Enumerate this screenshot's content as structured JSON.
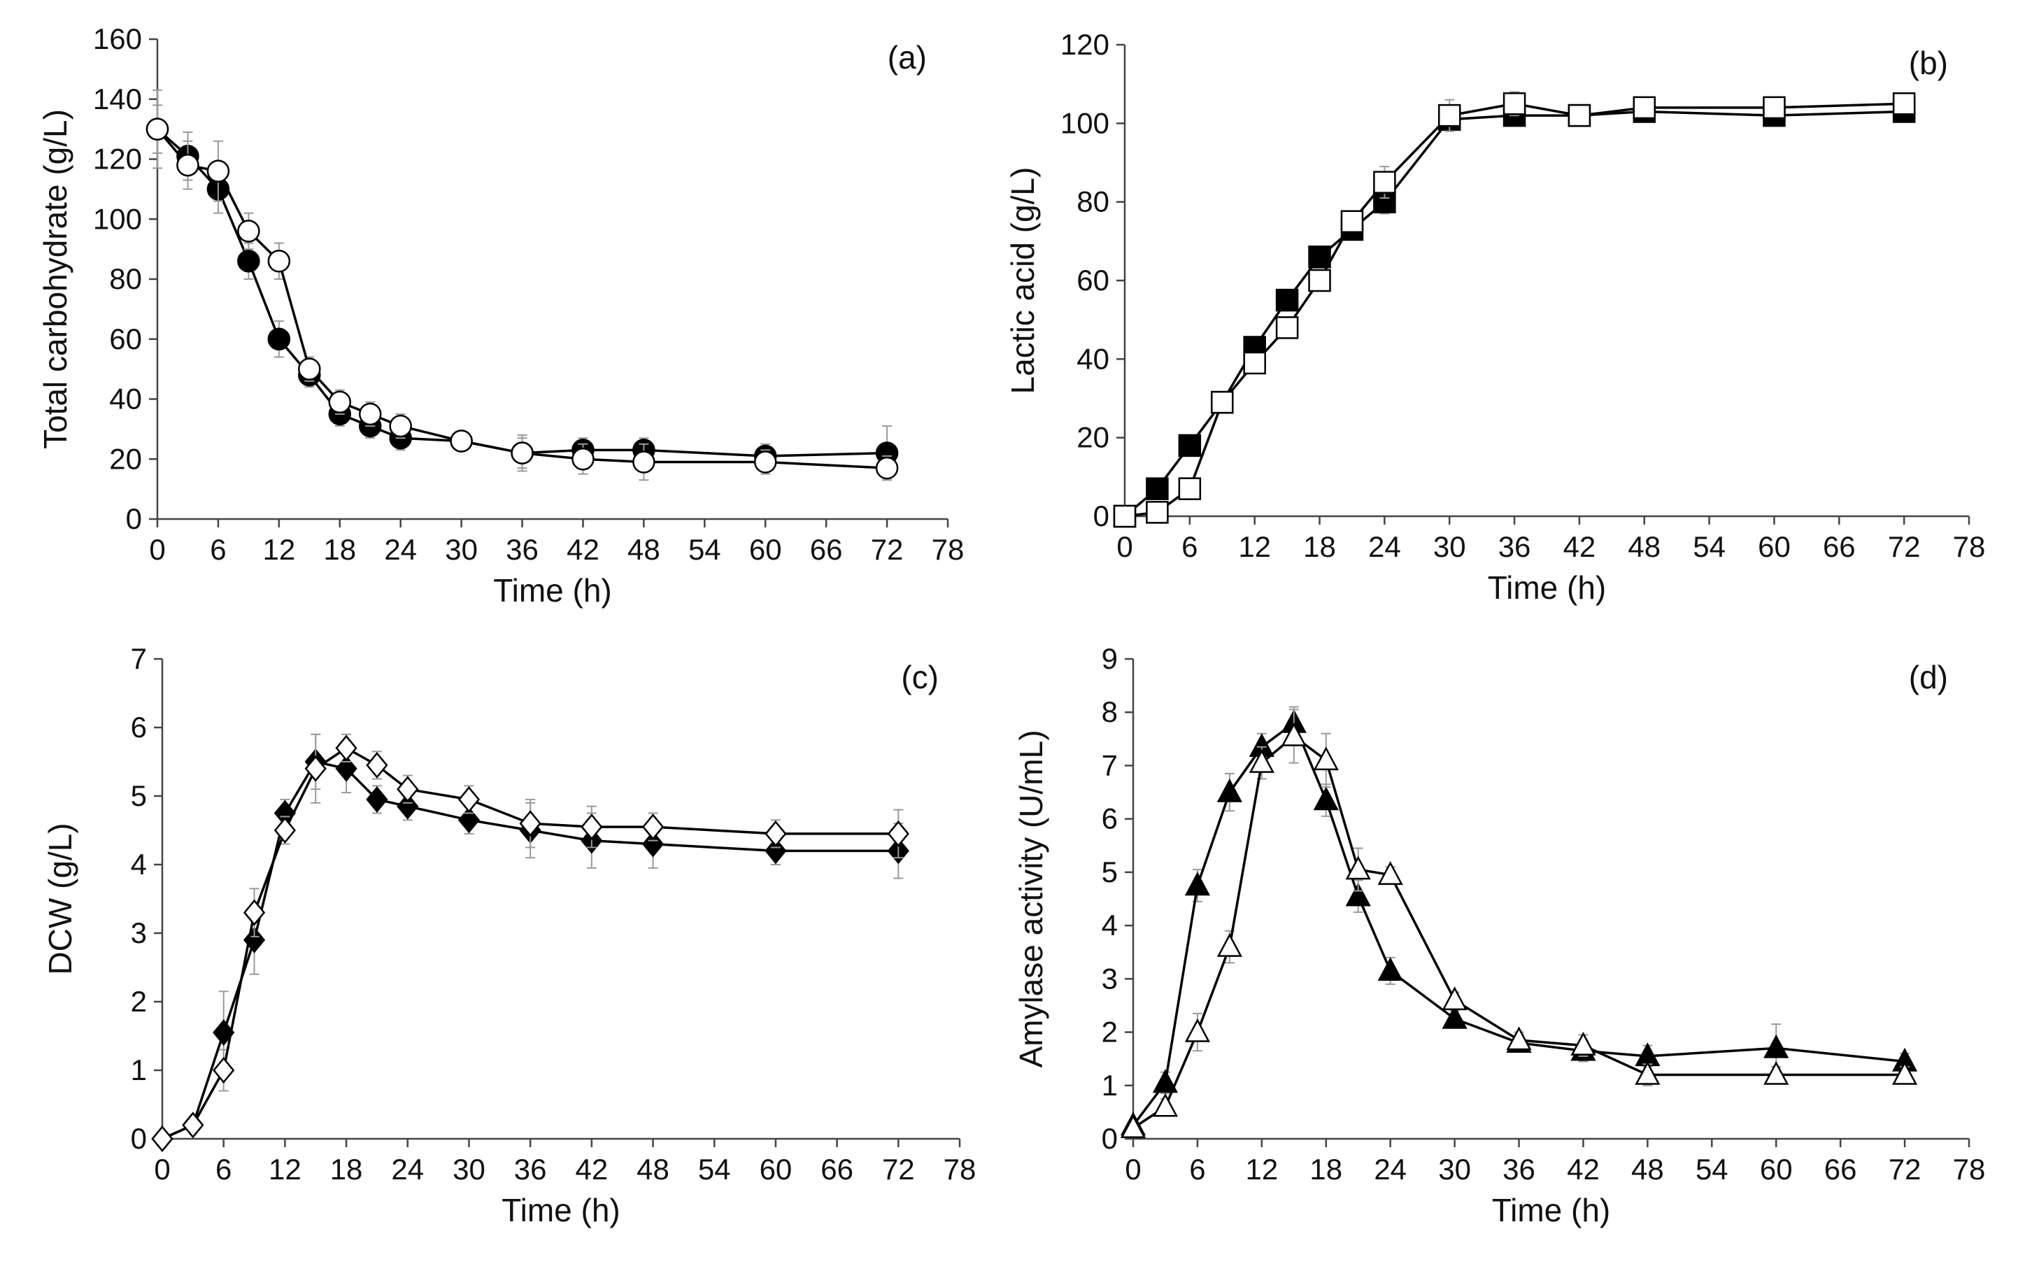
{
  "chart_data": [
    {
      "id": "a",
      "type": "line",
      "panel_label": "(a)",
      "xlabel": "Time (h)",
      "ylabel": "Total carbohydrate (g/L)",
      "xlim": [
        0,
        78
      ],
      "ylim": [
        0,
        160
      ],
      "xticks": [
        0,
        6,
        12,
        18,
        24,
        30,
        36,
        42,
        48,
        54,
        60,
        66,
        72,
        78
      ],
      "yticks": [
        0,
        20,
        40,
        60,
        80,
        100,
        120,
        140,
        160
      ],
      "grid": false,
      "series": [
        {
          "name": "filled circle",
          "marker": "circle",
          "fill": "#000000",
          "x": [
            0,
            3,
            6,
            9,
            12,
            15,
            18,
            21,
            24,
            30,
            36,
            42,
            48,
            60,
            72
          ],
          "values": [
            130,
            121,
            110,
            86,
            60,
            48,
            35,
            31,
            27,
            26,
            22,
            23,
            23,
            21,
            22
          ],
          "errors": [
            8,
            8,
            8,
            6,
            6,
            4,
            4,
            4,
            4,
            3,
            5,
            4,
            4,
            4,
            9
          ]
        },
        {
          "name": "open circle",
          "marker": "circle",
          "fill": "#ffffff",
          "x": [
            0,
            3,
            6,
            9,
            12,
            15,
            18,
            21,
            24,
            30,
            36,
            42,
            48,
            60,
            72
          ],
          "values": [
            130,
            118,
            116,
            96,
            86,
            50,
            39,
            35,
            31,
            26,
            22,
            20,
            19,
            19,
            17
          ],
          "errors": [
            13,
            8,
            10,
            6,
            6,
            4,
            4,
            4,
            4,
            3,
            6,
            5,
            6,
            4,
            4
          ]
        }
      ]
    },
    {
      "id": "b",
      "type": "line",
      "panel_label": "(b)",
      "xlabel": "Time (h)",
      "ylabel": "Lactic acid (g/L)",
      "xlim": [
        0,
        78
      ],
      "ylim": [
        0,
        120
      ],
      "xticks": [
        0,
        6,
        12,
        18,
        24,
        30,
        36,
        42,
        48,
        54,
        60,
        66,
        72,
        78
      ],
      "yticks": [
        0,
        20,
        40,
        60,
        80,
        100,
        120
      ],
      "grid": false,
      "series": [
        {
          "name": "filled square",
          "marker": "square",
          "fill": "#000000",
          "x": [
            0,
            3,
            6,
            9,
            12,
            15,
            18,
            21,
            24,
            30,
            36,
            42,
            48,
            60,
            72
          ],
          "values": [
            0,
            7,
            18,
            29,
            43,
            55,
            66,
            73,
            80,
            101,
            102,
            102,
            103,
            102,
            103
          ],
          "errors": [
            0,
            1,
            2,
            2,
            2,
            2,
            2,
            2,
            3,
            3,
            2,
            2,
            2,
            2,
            2
          ]
        },
        {
          "name": "open square",
          "marker": "square",
          "fill": "#ffffff",
          "x": [
            0,
            3,
            6,
            9,
            12,
            15,
            18,
            21,
            24,
            30,
            36,
            42,
            48,
            60,
            72
          ],
          "values": [
            0,
            1,
            7,
            29,
            39,
            48,
            60,
            75,
            85,
            102,
            105,
            102,
            104,
            104,
            105
          ],
          "errors": [
            0,
            1,
            2,
            2,
            2,
            2,
            2,
            2,
            4,
            4,
            3,
            2,
            2,
            2,
            2
          ]
        }
      ]
    },
    {
      "id": "c",
      "type": "line",
      "panel_label": "(c)",
      "xlabel": "Time (h)",
      "ylabel": "DCW (g/L)",
      "xlim": [
        0,
        78
      ],
      "ylim": [
        0,
        7
      ],
      "xticks": [
        0,
        6,
        12,
        18,
        24,
        30,
        36,
        42,
        48,
        54,
        60,
        66,
        72,
        78
      ],
      "yticks": [
        0,
        1,
        2,
        3,
        4,
        5,
        6,
        7
      ],
      "grid": false,
      "series": [
        {
          "name": "filled diamond",
          "marker": "diamond",
          "fill": "#000000",
          "x": [
            0,
            3,
            6,
            9,
            12,
            15,
            18,
            21,
            24,
            30,
            36,
            42,
            48,
            60,
            72
          ],
          "values": [
            0,
            0.2,
            1.55,
            2.9,
            4.75,
            5.5,
            5.4,
            4.95,
            4.85,
            4.65,
            4.5,
            4.35,
            4.3,
            4.2,
            4.2
          ],
          "errors": [
            0,
            0.05,
            0.6,
            0.5,
            0.2,
            0.4,
            0.35,
            0.2,
            0.2,
            0.2,
            0.4,
            0.4,
            0.35,
            0.2,
            0.4
          ]
        },
        {
          "name": "open diamond",
          "marker": "diamond",
          "fill": "#ffffff",
          "x": [
            0,
            3,
            6,
            9,
            12,
            15,
            18,
            21,
            24,
            30,
            36,
            42,
            48,
            60,
            72
          ],
          "values": [
            0,
            0.2,
            1.0,
            3.3,
            4.5,
            5.4,
            5.7,
            5.45,
            5.1,
            4.95,
            4.6,
            4.55,
            4.55,
            4.45,
            4.45
          ],
          "errors": [
            0,
            0.05,
            0.3,
            0.35,
            0.2,
            0.5,
            0.2,
            0.2,
            0.2,
            0.2,
            0.35,
            0.3,
            0.2,
            0.2,
            0.35
          ]
        }
      ]
    },
    {
      "id": "d",
      "type": "line",
      "panel_label": "(d)",
      "xlabel": "Time (h)",
      "ylabel": "Amylase activity (U/mL)",
      "xlim": [
        0,
        78
      ],
      "ylim": [
        0,
        9
      ],
      "xticks": [
        0,
        6,
        12,
        18,
        24,
        30,
        36,
        42,
        48,
        54,
        60,
        66,
        72,
        78
      ],
      "yticks": [
        0,
        1,
        2,
        3,
        4,
        5,
        6,
        7,
        8,
        9
      ],
      "grid": false,
      "series": [
        {
          "name": "filled triangle",
          "marker": "triangle",
          "fill": "#000000",
          "x": [
            0,
            3,
            6,
            9,
            12,
            15,
            18,
            21,
            24,
            30,
            36,
            42,
            48,
            60,
            72
          ],
          "values": [
            0.25,
            1.05,
            4.75,
            6.5,
            7.35,
            7.8,
            6.35,
            4.55,
            3.15,
            2.25,
            1.8,
            1.65,
            1.55,
            1.7,
            1.45
          ],
          "errors": [
            0.05,
            0.2,
            0.3,
            0.35,
            0.25,
            0.3,
            0.3,
            0.3,
            0.25,
            0.15,
            0.15,
            0.2,
            0.2,
            0.45,
            0.15
          ]
        },
        {
          "name": "open triangle",
          "marker": "triangle",
          "fill": "#ffffff",
          "x": [
            0,
            3,
            6,
            9,
            12,
            15,
            18,
            21,
            24,
            30,
            36,
            42,
            48,
            60,
            72
          ],
          "values": [
            0.2,
            0.6,
            2.0,
            3.6,
            7.05,
            7.55,
            7.1,
            5.05,
            4.95,
            2.6,
            1.85,
            1.75,
            1.2,
            1.2,
            1.2
          ],
          "errors": [
            0.05,
            0.15,
            0.35,
            0.3,
            0.3,
            0.5,
            0.5,
            0.4,
            0.15,
            0.15,
            0.15,
            0.2,
            0.2,
            0.15,
            0.15
          ]
        }
      ]
    }
  ]
}
